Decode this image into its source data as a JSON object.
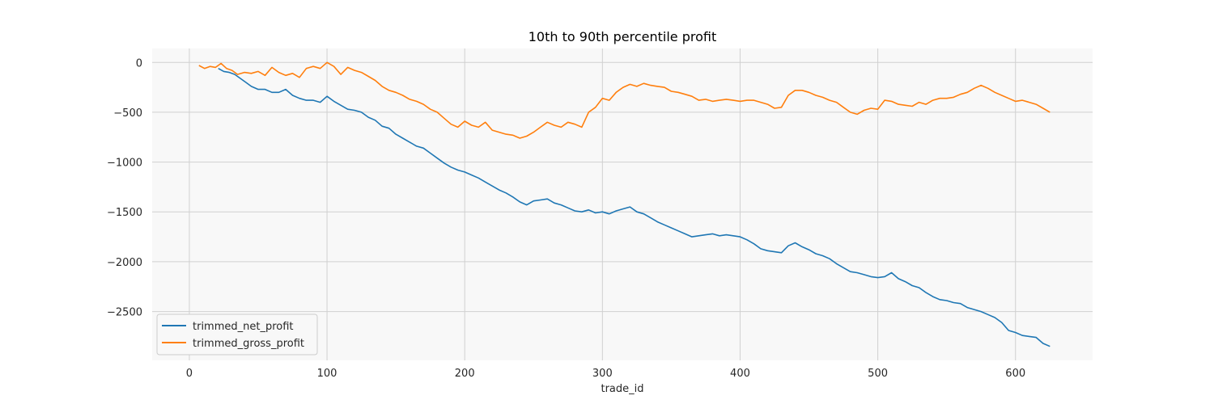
{
  "chart_data": {
    "type": "line",
    "title": "10th to 90th percentile profit",
    "xlabel": "trade_id",
    "ylabel": "",
    "xlim": [
      -27,
      656
    ],
    "ylim": [
      -2990,
      140
    ],
    "x_ticks": [
      0,
      100,
      200,
      300,
      400,
      500,
      600
    ],
    "y_ticks": [
      0,
      -500,
      -1000,
      -1500,
      -2000,
      -2500
    ],
    "y_tick_labels": [
      "0",
      "−500",
      "−1000",
      "−1500",
      "−2000",
      "−2500"
    ],
    "grid": true,
    "legend_position": "lower-left",
    "series": [
      {
        "name": "trimmed_net_profit",
        "color": "#1f77b4",
        "x": [
          21,
          25,
          29,
          33,
          37,
          41,
          45,
          50,
          55,
          60,
          65,
          70,
          75,
          80,
          85,
          90,
          95,
          100,
          105,
          110,
          115,
          120,
          125,
          130,
          135,
          140,
          145,
          150,
          155,
          160,
          165,
          170,
          175,
          180,
          185,
          190,
          195,
          200,
          205,
          210,
          215,
          220,
          225,
          230,
          235,
          240,
          245,
          250,
          255,
          260,
          265,
          270,
          275,
          280,
          285,
          290,
          295,
          300,
          305,
          310,
          315,
          320,
          325,
          330,
          335,
          340,
          345,
          350,
          355,
          360,
          365,
          370,
          375,
          380,
          385,
          390,
          395,
          400,
          405,
          410,
          415,
          420,
          425,
          430,
          435,
          440,
          445,
          450,
          455,
          460,
          465,
          470,
          475,
          480,
          485,
          490,
          495,
          500,
          505,
          510,
          515,
          520,
          525,
          530,
          535,
          540,
          545,
          550,
          555,
          560,
          565,
          570,
          575,
          580,
          585,
          590,
          595,
          600,
          605,
          610,
          615,
          620,
          625
        ],
        "y": [
          -60,
          -90,
          -100,
          -120,
          -160,
          -200,
          -240,
          -270,
          -270,
          -300,
          -300,
          -270,
          -330,
          -360,
          -380,
          -380,
          -400,
          -340,
          -390,
          -430,
          -470,
          -480,
          -500,
          -550,
          -580,
          -640,
          -660,
          -720,
          -760,
          -800,
          -840,
          -860,
          -910,
          -960,
          -1010,
          -1050,
          -1080,
          -1100,
          -1130,
          -1160,
          -1200,
          -1240,
          -1280,
          -1310,
          -1350,
          -1400,
          -1430,
          -1390,
          -1380,
          -1370,
          -1410,
          -1430,
          -1460,
          -1490,
          -1500,
          -1480,
          -1510,
          -1500,
          -1520,
          -1490,
          -1470,
          -1450,
          -1500,
          -1520,
          -1560,
          -1600,
          -1630,
          -1660,
          -1690,
          -1720,
          -1750,
          -1740,
          -1730,
          -1720,
          -1740,
          -1730,
          -1740,
          -1750,
          -1780,
          -1820,
          -1870,
          -1890,
          -1900,
          -1910,
          -1840,
          -1810,
          -1850,
          -1880,
          -1920,
          -1940,
          -1970,
          -2020,
          -2060,
          -2100,
          -2110,
          -2130,
          -2150,
          -2160,
          -2150,
          -2110,
          -2170,
          -2200,
          -2240,
          -2260,
          -2310,
          -2350,
          -2380,
          -2390,
          -2410,
          -2420,
          -2460,
          -2480,
          -2500,
          -2530,
          -2560,
          -2610,
          -2690,
          -2710,
          -2740,
          -2750,
          -2760,
          -2820,
          -2850
        ]
      },
      {
        "name": "trimmed_gross_profit",
        "color": "#ff7f0e",
        "x": [
          7,
          11,
          15,
          19,
          23,
          27,
          31,
          35,
          40,
          45,
          50,
          55,
          60,
          65,
          70,
          75,
          80,
          85,
          90,
          95,
          100,
          105,
          110,
          115,
          120,
          125,
          130,
          135,
          140,
          145,
          150,
          155,
          160,
          165,
          170,
          175,
          180,
          185,
          190,
          195,
          200,
          205,
          210,
          215,
          220,
          225,
          230,
          235,
          240,
          245,
          250,
          255,
          260,
          265,
          270,
          275,
          280,
          285,
          290,
          295,
          300,
          305,
          310,
          315,
          320,
          325,
          330,
          335,
          340,
          345,
          350,
          355,
          360,
          365,
          370,
          375,
          380,
          385,
          390,
          395,
          400,
          405,
          410,
          415,
          420,
          425,
          430,
          435,
          440,
          445,
          450,
          455,
          460,
          465,
          470,
          475,
          480,
          485,
          490,
          495,
          500,
          505,
          510,
          515,
          520,
          525,
          530,
          535,
          540,
          545,
          550,
          555,
          560,
          565,
          570,
          575,
          580,
          585,
          590,
          595,
          600,
          605,
          610,
          615,
          620,
          625
        ],
        "y": [
          -30,
          -60,
          -40,
          -50,
          -10,
          -60,
          -80,
          -120,
          -100,
          -110,
          -90,
          -130,
          -50,
          -100,
          -130,
          -110,
          -150,
          -60,
          -40,
          -60,
          0,
          -40,
          -120,
          -50,
          -80,
          -100,
          -140,
          -180,
          -240,
          -280,
          -300,
          -330,
          -370,
          -390,
          -420,
          -470,
          -500,
          -560,
          -620,
          -650,
          -590,
          -630,
          -650,
          -600,
          -680,
          -700,
          -720,
          -730,
          -760,
          -740,
          -700,
          -650,
          -600,
          -630,
          -650,
          -600,
          -620,
          -650,
          -500,
          -450,
          -360,
          -380,
          -300,
          -250,
          -220,
          -240,
          -210,
          -230,
          -240,
          -250,
          -290,
          -300,
          -320,
          -340,
          -380,
          -370,
          -390,
          -380,
          -370,
          -380,
          -390,
          -380,
          -380,
          -400,
          -420,
          -460,
          -450,
          -330,
          -280,
          -280,
          -300,
          -330,
          -350,
          -380,
          -400,
          -450,
          -500,
          -520,
          -480,
          -460,
          -470,
          -380,
          -390,
          -420,
          -430,
          -440,
          -400,
          -420,
          -380,
          -360,
          -360,
          -350,
          -320,
          -300,
          -260,
          -230,
          -260,
          -300,
          -330,
          -360,
          -390,
          -380,
          -400,
          -420,
          -460,
          -500
        ]
      }
    ]
  }
}
